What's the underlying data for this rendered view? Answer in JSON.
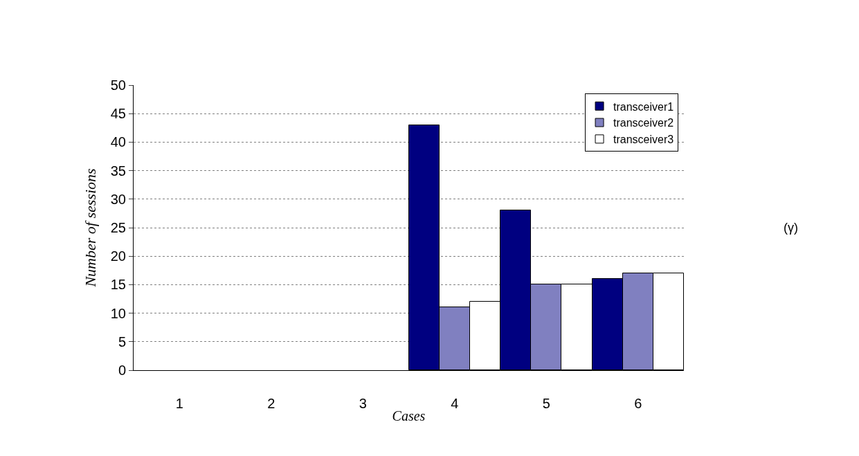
{
  "chart_data": {
    "type": "bar",
    "xlabel": "Cases",
    "ylabel": "Number of sessions",
    "categories": [
      "1",
      "2",
      "3",
      "4",
      "5",
      "6"
    ],
    "series": [
      {
        "name": "transceiver1",
        "color": "#000080",
        "values": [
          null,
          null,
          null,
          43,
          28,
          16
        ]
      },
      {
        "name": "transceiver2",
        "color": "#8080c0",
        "values": [
          null,
          null,
          null,
          11,
          15,
          17
        ]
      },
      {
        "name": "transceiver3",
        "color": "#ffffff",
        "values": [
          null,
          null,
          null,
          12,
          15,
          17
        ]
      }
    ],
    "ylim": [
      0,
      50
    ],
    "yticks": [
      0,
      5,
      10,
      15,
      20,
      25,
      30,
      35,
      40,
      45,
      50
    ],
    "grid": "y",
    "legend": "top right",
    "annotations": [
      "(γ)"
    ]
  }
}
